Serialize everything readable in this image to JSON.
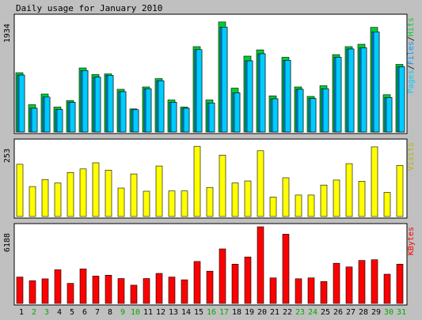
{
  "title": "Daily usage for January 2010",
  "colors": {
    "background": "#c0c0c0",
    "panel": "#ffffff",
    "hits": "#00cc33",
    "files": "#0099ff",
    "pages": "#00ccff",
    "visits": "#ffff00",
    "kbytes": "#ff0000",
    "weekend_label": "#00aa00"
  },
  "chart_data": [
    {
      "type": "bar",
      "title": "Daily usage for January 2010",
      "ylabel": "Pages/Files/Hits",
      "ylabel_parts": [
        "Pages",
        "/",
        "Files",
        "/",
        "Hits"
      ],
      "ymax_label": "1934",
      "ylim": [
        0,
        1934
      ],
      "categories": [
        "1",
        "2",
        "3",
        "4",
        "5",
        "6",
        "7",
        "8",
        "9",
        "10",
        "11",
        "12",
        "13",
        "14",
        "15",
        "16",
        "17",
        "18",
        "19",
        "20",
        "21",
        "22",
        "23",
        "24",
        "25",
        "26",
        "27",
        "28",
        "29",
        "30",
        "31"
      ],
      "series": [
        {
          "name": "Hits",
          "values": [
            1000,
            460,
            640,
            420,
            530,
            1080,
            970,
            980,
            720,
            390,
            760,
            900,
            540,
            420,
            1440,
            540,
            1856,
            740,
            1280,
            1386,
            610,
            1260,
            760,
            600,
            780,
            1306,
            1440,
            1480,
            1766,
            630,
            1140
          ]
        },
        {
          "name": "Files",
          "values": [
            960,
            400,
            590,
            380,
            500,
            1036,
            924,
            956,
            680,
            376,
            730,
            864,
            500,
            400,
            1390,
            490,
            1770,
            660,
            1200,
            1320,
            560,
            1210,
            720,
            566,
            730,
            1260,
            1400,
            1420,
            1690,
            580,
            1100
          ]
        },
        {
          "name": "Pages",
          "values": [
            960,
            400,
            590,
            380,
            500,
            1036,
            924,
            956,
            680,
            376,
            730,
            864,
            500,
            400,
            1390,
            490,
            1770,
            660,
            1200,
            1320,
            560,
            1210,
            720,
            566,
            730,
            1260,
            1400,
            1420,
            1690,
            580,
            1100
          ]
        }
      ]
    },
    {
      "type": "bar",
      "ylabel": "Visits",
      "ymax_label": "253",
      "ylim": [
        0,
        253
      ],
      "categories": [
        "1",
        "2",
        "3",
        "4",
        "5",
        "6",
        "7",
        "8",
        "9",
        "10",
        "11",
        "12",
        "13",
        "14",
        "15",
        "16",
        "17",
        "18",
        "19",
        "20",
        "21",
        "22",
        "23",
        "24",
        "25",
        "26",
        "27",
        "28",
        "29",
        "30",
        "31"
      ],
      "series": [
        {
          "name": "Visits",
          "values": [
            178,
            102,
            126,
            114,
            150,
            162,
            183,
            158,
            97,
            145,
            86,
            172,
            87,
            87,
            239,
            99,
            209,
            114,
            121,
            224,
            66,
            132,
            73,
            73,
            107,
            124,
            180,
            120,
            237,
            82,
            174
          ]
        }
      ]
    },
    {
      "type": "bar",
      "ylabel": "KBytes",
      "ymax_label": "6188",
      "ylim": [
        0,
        6188
      ],
      "categories": [
        "1",
        "2",
        "3",
        "4",
        "5",
        "6",
        "7",
        "8",
        "9",
        "10",
        "11",
        "12",
        "13",
        "14",
        "15",
        "16",
        "17",
        "18",
        "19",
        "20",
        "21",
        "22",
        "23",
        "24",
        "25",
        "26",
        "27",
        "28",
        "29",
        "30",
        "31"
      ],
      "series": [
        {
          "name": "KBytes",
          "values": [
            2130,
            1840,
            1987,
            2720,
            1620,
            2790,
            2210,
            2280,
            2010,
            1475,
            2010,
            2425,
            2130,
            1910,
            3390,
            2600,
            4400,
            3170,
            3750,
            6188,
            2060,
            5590,
            1990,
            2060,
            1770,
            3240,
            2950,
            3470,
            3530,
            2360,
            3170
          ]
        }
      ]
    }
  ]
}
